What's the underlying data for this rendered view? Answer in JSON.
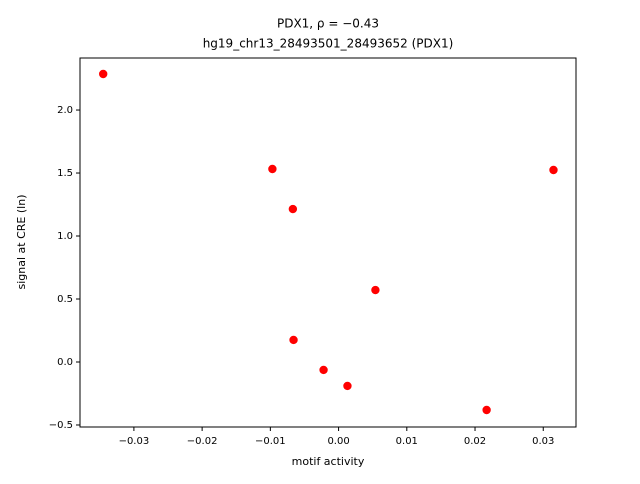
{
  "chart_data": {
    "type": "scatter",
    "title": "PDX1, ρ = −0.43",
    "subtitle": "hg19_chr13_28493501_28493652 (PDX1)",
    "x_label": "motif activity",
    "y_label": "signal at CRE (ln)",
    "color": "#ff0000",
    "x": [
      -0.0345,
      -0.0097,
      -0.0067,
      0.0315,
      0.0054,
      -0.0066,
      -0.0022,
      0.0013,
      0.0217
    ],
    "values": [
      2.286,
      1.532,
      1.214,
      1.524,
      0.571,
      0.175,
      -0.063,
      -0.19,
      -0.381
    ],
    "xlim": [
      -0.0379,
      0.0348
    ],
    "ylim": [
      -0.516,
      2.413
    ],
    "xticks": [
      {
        "value": -0.03,
        "label": "−0.03"
      },
      {
        "value": -0.02,
        "label": "−0.02"
      },
      {
        "value": -0.01,
        "label": "−0.01"
      },
      {
        "value": 0,
        "label": "0.00"
      },
      {
        "value": 0.01,
        "label": "0.01"
      },
      {
        "value": 0.02,
        "label": "0.02"
      },
      {
        "value": 0.03,
        "label": "0.03"
      }
    ],
    "yticks": [
      {
        "value": -0.5,
        "label": "−0.5"
      },
      {
        "value": 0,
        "label": "0.0"
      },
      {
        "value": 0.5,
        "label": "0.5"
      },
      {
        "value": 1,
        "label": "1.0"
      },
      {
        "value": 1.5,
        "label": "1.5"
      },
      {
        "value": 2,
        "label": "2.0"
      }
    ]
  }
}
